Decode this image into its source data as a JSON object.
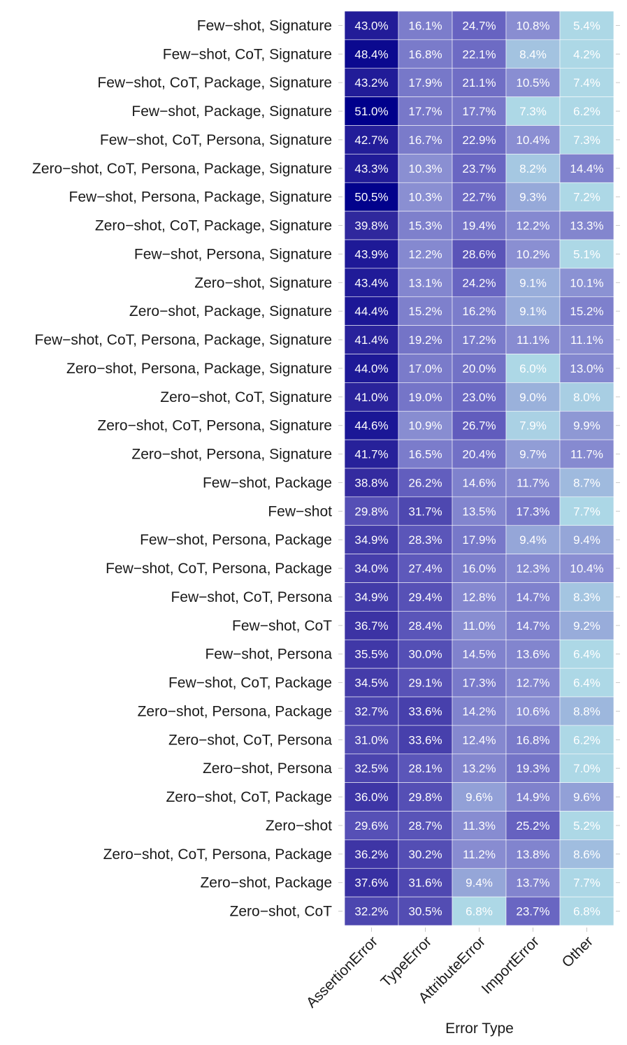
{
  "chart_data": {
    "type": "heatmap",
    "title": "",
    "xlabel": "Error Type",
    "ylabel": "",
    "columns": [
      "AssertionError",
      "TypeError",
      "AttributeError",
      "ImportError",
      "Other"
    ],
    "rows": [
      {
        "label": "Few−shot, Signature",
        "values": [
          "43.0%",
          "16.1%",
          "24.7%",
          "10.8%",
          "5.4%"
        ]
      },
      {
        "label": "Few−shot, CoT, Signature",
        "values": [
          "48.4%",
          "16.8%",
          "22.1%",
          "8.4%",
          "4.2%"
        ]
      },
      {
        "label": "Few−shot, CoT, Package, Signature",
        "values": [
          "43.2%",
          "17.9%",
          "21.1%",
          "10.5%",
          "7.4%"
        ]
      },
      {
        "label": "Few−shot, Package, Signature",
        "values": [
          "51.0%",
          "17.7%",
          "17.7%",
          "7.3%",
          "6.2%"
        ]
      },
      {
        "label": "Few−shot, CoT, Persona, Signature",
        "values": [
          "42.7%",
          "16.7%",
          "22.9%",
          "10.4%",
          "7.3%"
        ]
      },
      {
        "label": "Zero−shot, CoT, Persona, Package, Signature",
        "values": [
          "43.3%",
          "10.3%",
          "23.7%",
          "8.2%",
          "14.4%"
        ]
      },
      {
        "label": "Few−shot, Persona, Package, Signature",
        "values": [
          "50.5%",
          "10.3%",
          "22.7%",
          "9.3%",
          "7.2%"
        ]
      },
      {
        "label": "Zero−shot, CoT, Package, Signature",
        "values": [
          "39.8%",
          "15.3%",
          "19.4%",
          "12.2%",
          "13.3%"
        ]
      },
      {
        "label": "Few−shot, Persona, Signature",
        "values": [
          "43.9%",
          "12.2%",
          "28.6%",
          "10.2%",
          "5.1%"
        ]
      },
      {
        "label": "Zero−shot, Signature",
        "values": [
          "43.4%",
          "13.1%",
          "24.2%",
          "9.1%",
          "10.1%"
        ]
      },
      {
        "label": "Zero−shot, Package, Signature",
        "values": [
          "44.4%",
          "15.2%",
          "16.2%",
          "9.1%",
          "15.2%"
        ]
      },
      {
        "label": "Few−shot, CoT, Persona, Package, Signature",
        "values": [
          "41.4%",
          "19.2%",
          "17.2%",
          "11.1%",
          "11.1%"
        ]
      },
      {
        "label": "Zero−shot, Persona, Package, Signature",
        "values": [
          "44.0%",
          "17.0%",
          "20.0%",
          "6.0%",
          "13.0%"
        ]
      },
      {
        "label": "Zero−shot, CoT, Signature",
        "values": [
          "41.0%",
          "19.0%",
          "23.0%",
          "9.0%",
          "8.0%"
        ]
      },
      {
        "label": "Zero−shot, CoT, Persona, Signature",
        "values": [
          "44.6%",
          "10.9%",
          "26.7%",
          "7.9%",
          "9.9%"
        ]
      },
      {
        "label": "Zero−shot, Persona, Signature",
        "values": [
          "41.7%",
          "16.5%",
          "20.4%",
          "9.7%",
          "11.7%"
        ]
      },
      {
        "label": "Few−shot, Package",
        "values": [
          "38.8%",
          "26.2%",
          "14.6%",
          "11.7%",
          "8.7%"
        ]
      },
      {
        "label": "Few−shot",
        "values": [
          "29.8%",
          "31.7%",
          "13.5%",
          "17.3%",
          "7.7%"
        ]
      },
      {
        "label": "Few−shot, Persona, Package",
        "values": [
          "34.9%",
          "28.3%",
          "17.9%",
          "9.4%",
          "9.4%"
        ]
      },
      {
        "label": "Few−shot, CoT, Persona, Package",
        "values": [
          "34.0%",
          "27.4%",
          "16.0%",
          "12.3%",
          "10.4%"
        ]
      },
      {
        "label": "Few−shot, CoT, Persona",
        "values": [
          "34.9%",
          "29.4%",
          "12.8%",
          "14.7%",
          "8.3%"
        ]
      },
      {
        "label": "Few−shot, CoT",
        "values": [
          "36.7%",
          "28.4%",
          "11.0%",
          "14.7%",
          "9.2%"
        ]
      },
      {
        "label": "Few−shot, Persona",
        "values": [
          "35.5%",
          "30.0%",
          "14.5%",
          "13.6%",
          "6.4%"
        ]
      },
      {
        "label": "Few−shot, CoT, Package",
        "values": [
          "34.5%",
          "29.1%",
          "17.3%",
          "12.7%",
          "6.4%"
        ]
      },
      {
        "label": "Zero−shot, Persona, Package",
        "values": [
          "32.7%",
          "33.6%",
          "14.2%",
          "10.6%",
          "8.8%"
        ]
      },
      {
        "label": "Zero−shot, CoT, Persona",
        "values": [
          "31.0%",
          "33.6%",
          "12.4%",
          "16.8%",
          "6.2%"
        ]
      },
      {
        "label": "Zero−shot, Persona",
        "values": [
          "32.5%",
          "28.1%",
          "13.2%",
          "19.3%",
          "7.0%"
        ]
      },
      {
        "label": "Zero−shot, CoT, Package",
        "values": [
          "36.0%",
          "29.8%",
          "9.6%",
          "14.9%",
          "9.6%"
        ]
      },
      {
        "label": "Zero−shot",
        "values": [
          "29.6%",
          "28.7%",
          "11.3%",
          "25.2%",
          "5.2%"
        ]
      },
      {
        "label": "Zero−shot, CoT, Persona, Package",
        "values": [
          "36.2%",
          "30.2%",
          "11.2%",
          "13.8%",
          "8.6%"
        ]
      },
      {
        "label": "Zero−shot, Package",
        "values": [
          "37.6%",
          "31.6%",
          "9.4%",
          "13.7%",
          "7.7%"
        ]
      },
      {
        "label": "Zero−shot, CoT",
        "values": [
          "32.2%",
          "30.5%",
          "6.8%",
          "23.7%",
          "6.8%"
        ]
      }
    ],
    "color_scale": {
      "low": "#ADD8E6",
      "mid": "#8A8FD2",
      "high": "#00008B",
      "domain_percent": [
        0,
        51
      ]
    },
    "legend": "none",
    "grid": false
  }
}
